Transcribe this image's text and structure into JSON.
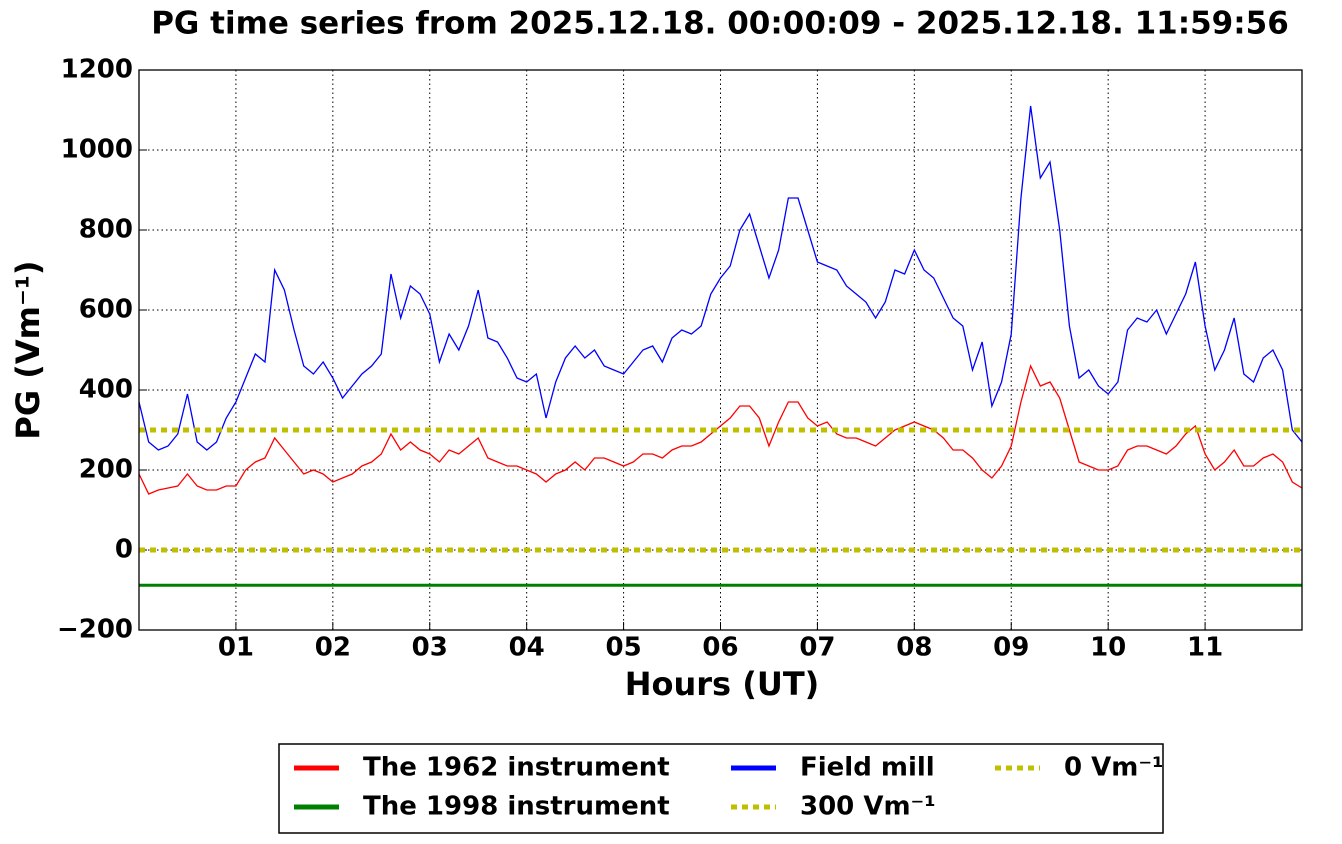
{
  "chart_data": {
    "type": "line",
    "title": "PG time series from 2025.12.18. 00:00:09 - 2025.12.18. 11:59:56",
    "x_label": "Hours (UT)",
    "y_label": "PG (Vm⁻¹)",
    "xlim": [
      0,
      12
    ],
    "xticks": [
      {
        "value": 1,
        "label": "01"
      },
      {
        "value": 2,
        "label": "02"
      },
      {
        "value": 3,
        "label": "03"
      },
      {
        "value": 4,
        "label": "04"
      },
      {
        "value": 5,
        "label": "05"
      },
      {
        "value": 6,
        "label": "06"
      },
      {
        "value": 7,
        "label": "07"
      },
      {
        "value": 8,
        "label": "08"
      },
      {
        "value": 9,
        "label": "09"
      },
      {
        "value": 10,
        "label": "10"
      },
      {
        "value": 11,
        "label": "11"
      }
    ],
    "ylim": [
      -200,
      1200
    ],
    "yticks": [
      {
        "value": -200,
        "label": "−200"
      },
      0,
      200,
      400,
      600,
      800,
      1000,
      1200
    ],
    "grid": true,
    "legend": "below",
    "series": [
      {
        "name": "The 1962 instrument",
        "color": "#ff0000",
        "linestyle": "solid",
        "x": [
          0,
          0.1,
          0.2,
          0.3,
          0.4,
          0.5,
          0.6,
          0.7,
          0.8,
          0.9,
          1,
          1.1,
          1.2,
          1.3,
          1.4,
          1.5,
          1.6,
          1.7,
          1.8,
          1.9,
          2,
          2.1,
          2.2,
          2.3,
          2.4,
          2.5,
          2.6,
          2.7,
          2.8,
          2.9,
          3,
          3.1,
          3.2,
          3.3,
          3.4,
          3.5,
          3.6,
          3.7,
          3.8,
          3.9,
          4,
          4.1,
          4.2,
          4.3,
          4.4,
          4.5,
          4.6,
          4.7,
          4.8,
          4.9,
          5,
          5.1,
          5.2,
          5.3,
          5.4,
          5.5,
          5.6,
          5.7,
          5.8,
          5.9,
          6,
          6.1,
          6.2,
          6.3,
          6.4,
          6.5,
          6.6,
          6.7,
          6.8,
          6.9,
          7,
          7.1,
          7.2,
          7.3,
          7.4,
          7.5,
          7.6,
          7.7,
          7.8,
          7.9,
          8,
          8.1,
          8.2,
          8.3,
          8.4,
          8.5,
          8.6,
          8.7,
          8.8,
          8.9,
          9,
          9.1,
          9.2,
          9.3,
          9.4,
          9.5,
          9.6,
          9.7,
          9.8,
          9.9,
          10,
          10.1,
          10.2,
          10.3,
          10.4,
          10.5,
          10.6,
          10.7,
          10.8,
          10.9,
          11,
          11.1,
          11.2,
          11.3,
          11.4,
          11.5,
          11.6,
          11.7,
          11.8,
          11.9,
          12
        ],
        "values": [
          190,
          140,
          150,
          155,
          160,
          190,
          160,
          150,
          150,
          160,
          160,
          200,
          220,
          230,
          280,
          250,
          220,
          190,
          200,
          190,
          170,
          180,
          190,
          210,
          220,
          240,
          290,
          250,
          270,
          250,
          240,
          220,
          250,
          240,
          260,
          280,
          230,
          220,
          210,
          210,
          200,
          190,
          170,
          190,
          200,
          220,
          200,
          230,
          230,
          220,
          210,
          220,
          240,
          240,
          230,
          250,
          260,
          260,
          270,
          290,
          310,
          330,
          360,
          360,
          330,
          260,
          320,
          370,
          370,
          330,
          310,
          320,
          290,
          280,
          280,
          270,
          260,
          280,
          300,
          310,
          320,
          310,
          300,
          280,
          250,
          250,
          230,
          200,
          180,
          210,
          260,
          370,
          460,
          410,
          420,
          380,
          300,
          220,
          210,
          200,
          200,
          210,
          250,
          260,
          260,
          250,
          240,
          260,
          290,
          310,
          240,
          200,
          220,
          250,
          210,
          210,
          230,
          240,
          220,
          170,
          155
        ]
      },
      {
        "name": "The 1998 instrument",
        "color": "#008000",
        "linestyle": "solid",
        "x": [
          0,
          12
        ],
        "values": [
          -88,
          -88
        ]
      },
      {
        "name": "Field mill",
        "color": "#0000ff",
        "linestyle": "solid",
        "x": [
          0,
          0.1,
          0.2,
          0.3,
          0.4,
          0.5,
          0.6,
          0.7,
          0.8,
          0.9,
          1,
          1.1,
          1.2,
          1.3,
          1.4,
          1.5,
          1.6,
          1.7,
          1.8,
          1.9,
          2,
          2.1,
          2.2,
          2.3,
          2.4,
          2.5,
          2.6,
          2.7,
          2.8,
          2.9,
          3,
          3.1,
          3.2,
          3.3,
          3.4,
          3.5,
          3.6,
          3.7,
          3.8,
          3.9,
          4,
          4.1,
          4.2,
          4.3,
          4.4,
          4.5,
          4.6,
          4.7,
          4.8,
          4.9,
          5,
          5.1,
          5.2,
          5.3,
          5.4,
          5.5,
          5.6,
          5.7,
          5.8,
          5.9,
          6,
          6.1,
          6.2,
          6.3,
          6.4,
          6.5,
          6.6,
          6.7,
          6.8,
          6.9,
          7,
          7.1,
          7.2,
          7.3,
          7.4,
          7.5,
          7.6,
          7.7,
          7.8,
          7.9,
          8,
          8.1,
          8.2,
          8.3,
          8.4,
          8.5,
          8.6,
          8.7,
          8.8,
          8.9,
          9,
          9.1,
          9.2,
          9.3,
          9.4,
          9.5,
          9.6,
          9.7,
          9.8,
          9.9,
          10,
          10.1,
          10.2,
          10.3,
          10.4,
          10.5,
          10.6,
          10.7,
          10.8,
          10.9,
          11,
          11.1,
          11.2,
          11.3,
          11.4,
          11.5,
          11.6,
          11.7,
          11.8,
          11.9,
          12
        ],
        "values": [
          370,
          270,
          250,
          260,
          290,
          390,
          270,
          250,
          270,
          330,
          370,
          430,
          490,
          470,
          700,
          650,
          550,
          460,
          440,
          470,
          430,
          380,
          410,
          440,
          460,
          490,
          690,
          580,
          660,
          640,
          590,
          470,
          540,
          500,
          560,
          650,
          530,
          520,
          480,
          430,
          420,
          440,
          330,
          420,
          480,
          510,
          480,
          500,
          460,
          450,
          440,
          470,
          500,
          510,
          470,
          530,
          550,
          540,
          560,
          640,
          680,
          710,
          800,
          840,
          760,
          680,
          750,
          880,
          880,
          800,
          720,
          710,
          700,
          660,
          640,
          620,
          580,
          620,
          700,
          690,
          750,
          700,
          680,
          630,
          580,
          560,
          450,
          520,
          360,
          420,
          540,
          880,
          1110,
          930,
          970,
          800,
          560,
          430,
          450,
          410,
          390,
          420,
          550,
          580,
          570,
          600,
          540,
          590,
          640,
          720,
          560,
          450,
          500,
          580,
          440,
          420,
          480,
          500,
          450,
          300,
          270
        ]
      },
      {
        "name": "300 Vm⁻¹",
        "color": "#bfbf00",
        "linestyle": "dotted",
        "x": [
          0,
          12
        ],
        "values": [
          300,
          300
        ]
      },
      {
        "name": "0 Vm⁻¹",
        "color": "#bfbf00",
        "linestyle": "dotted",
        "x": [
          0,
          12
        ],
        "values": [
          0,
          0
        ]
      }
    ]
  }
}
